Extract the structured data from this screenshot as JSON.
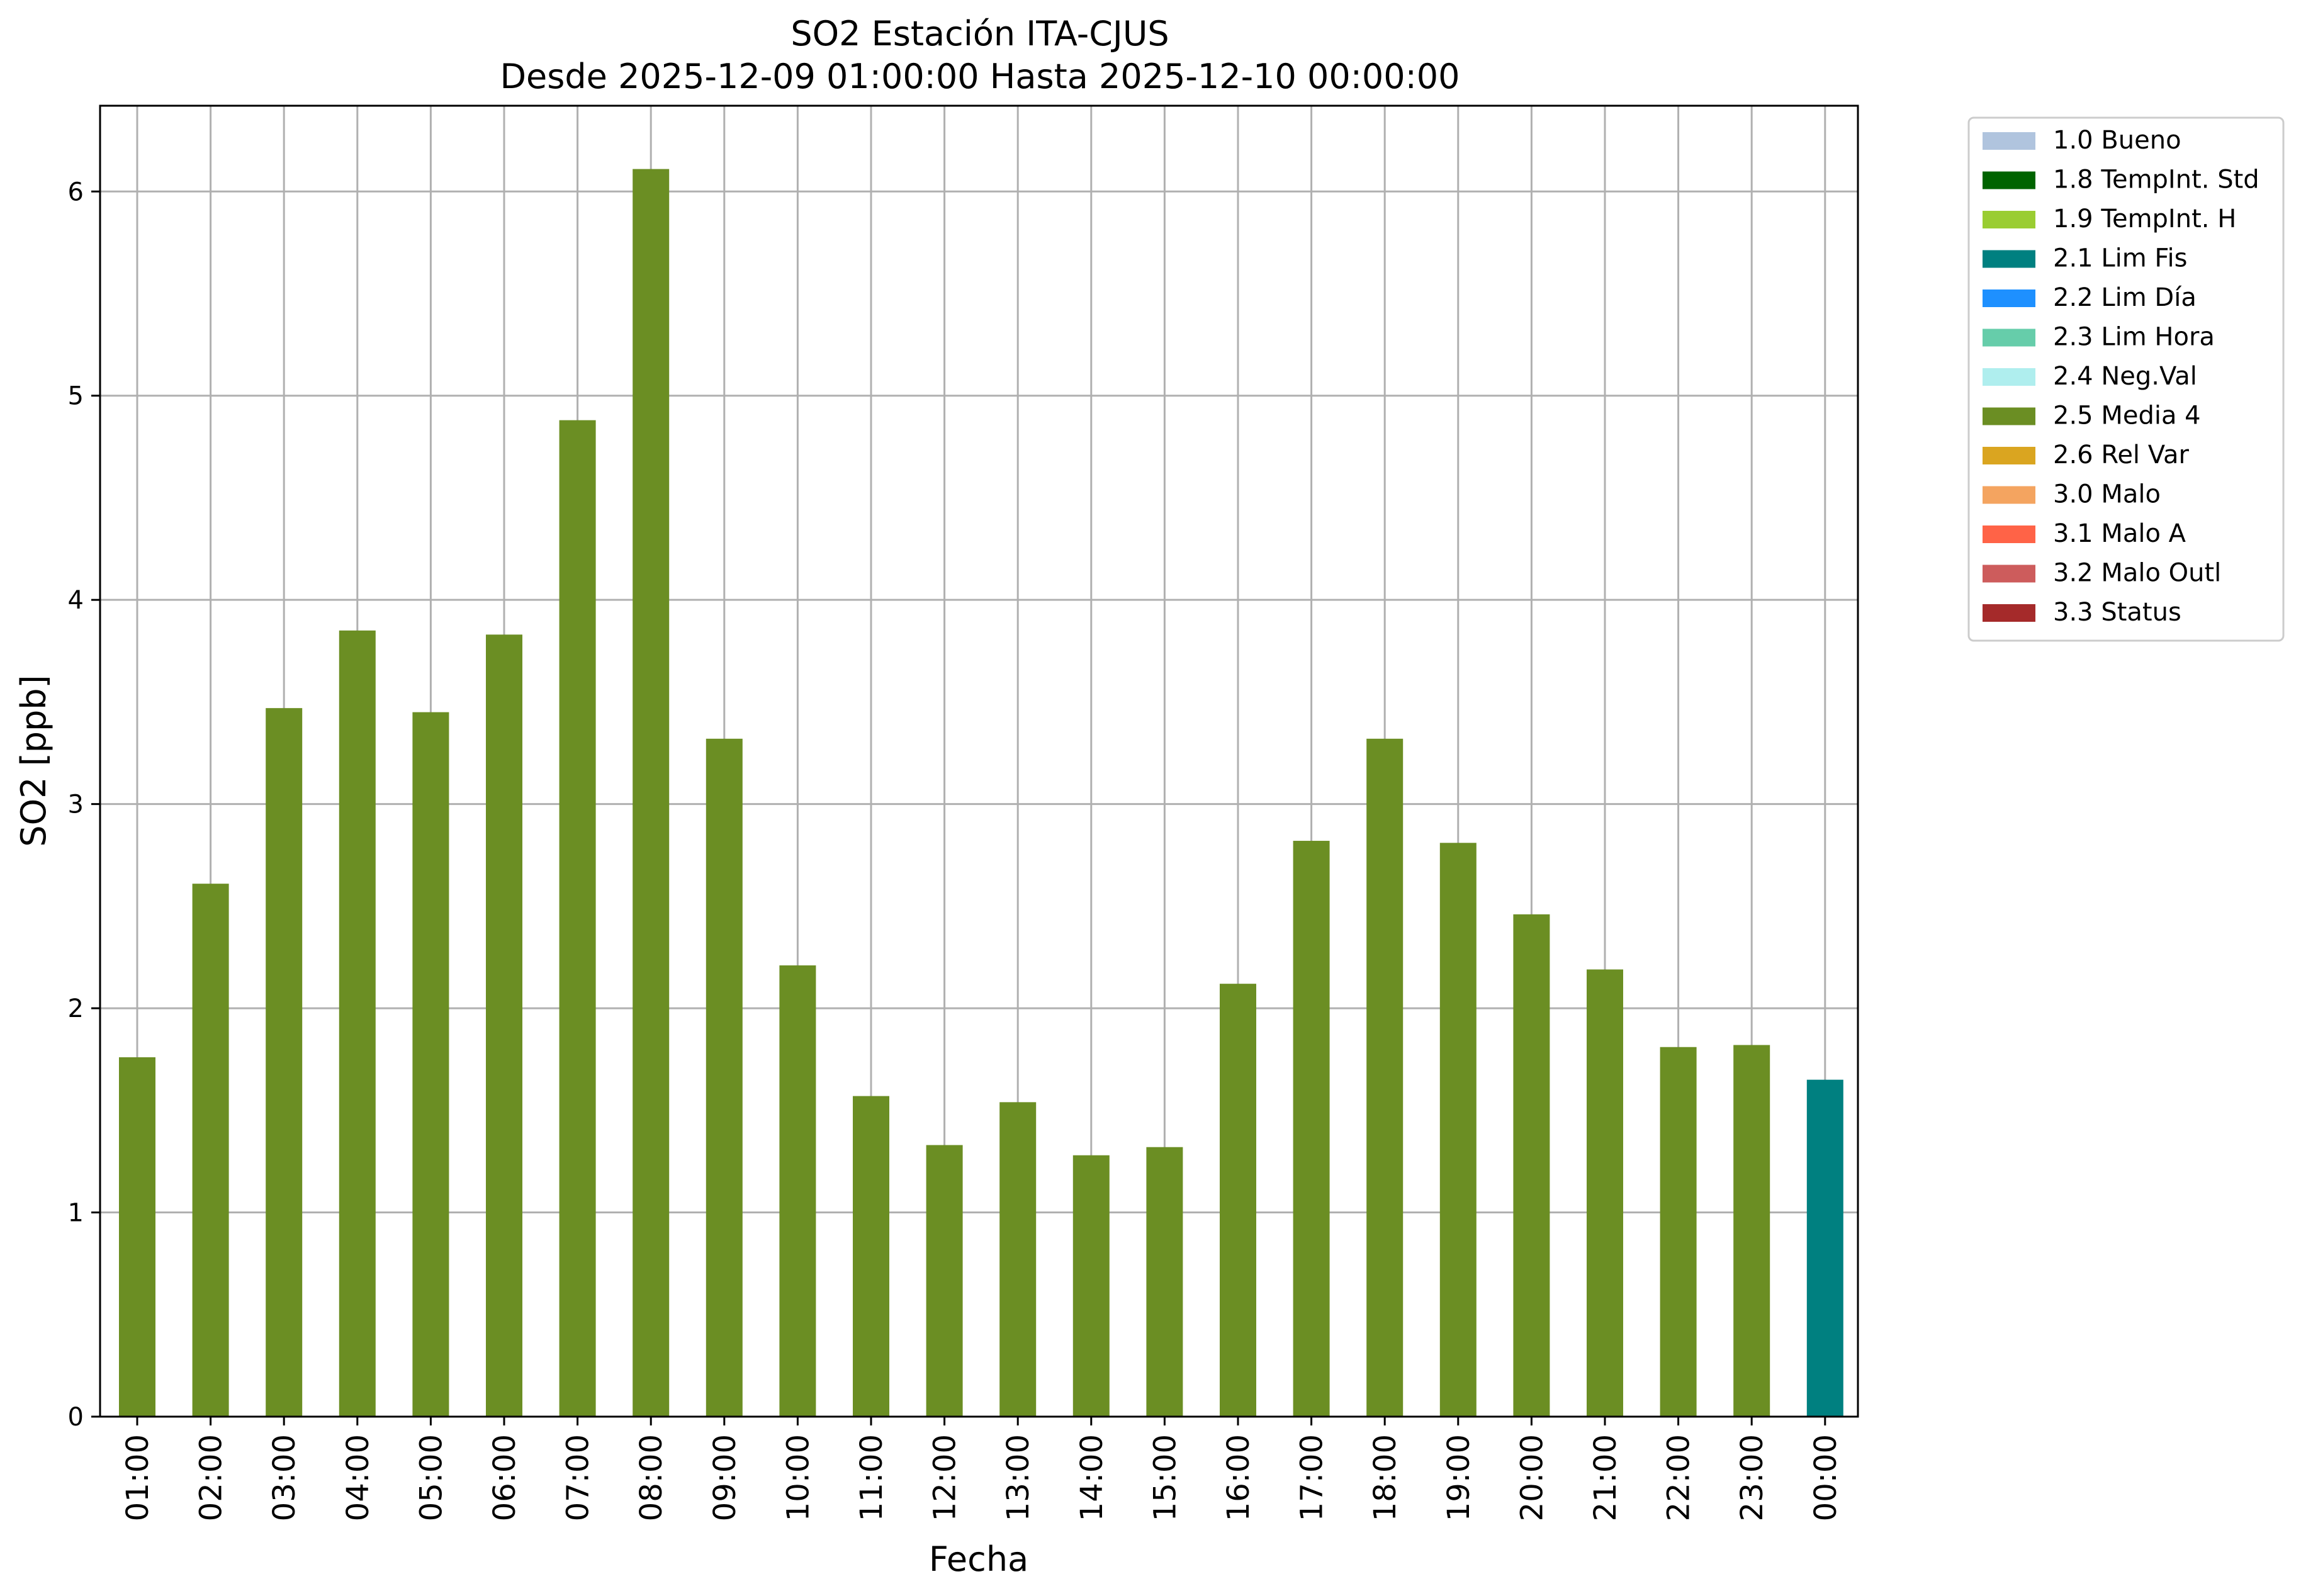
{
  "chart_data": {
    "type": "bar",
    "title": "SO2 Estación ITA-CJUS",
    "subtitle": "Desde 2025-12-09 01:00:00 Hasta 2025-12-10 00:00:00",
    "xlabel": "Fecha",
    "ylabel": "SO2 [ppb]",
    "ylim": [
      0,
      6.42
    ],
    "yticks": [
      "0",
      "1",
      "2",
      "3",
      "4",
      "5",
      "6"
    ],
    "grid": true,
    "legend_position": "outside-top-right",
    "categories": [
      "01:00",
      "02:00",
      "03:00",
      "04:00",
      "05:00",
      "06:00",
      "07:00",
      "08:00",
      "09:00",
      "10:00",
      "11:00",
      "12:00",
      "13:00",
      "14:00",
      "15:00",
      "16:00",
      "17:00",
      "18:00",
      "19:00",
      "20:00",
      "21:00",
      "22:00",
      "23:00",
      "00:00"
    ],
    "values": [
      1.76,
      2.61,
      3.47,
      3.85,
      3.45,
      3.83,
      4.88,
      6.11,
      3.32,
      2.21,
      1.57,
      1.33,
      1.54,
      1.28,
      1.32,
      2.12,
      2.82,
      3.32,
      2.81,
      2.46,
      2.19,
      1.81,
      1.82,
      1.65
    ],
    "flags": [
      "2.5 Media 4",
      "2.5 Media 4",
      "2.5 Media 4",
      "2.5 Media 4",
      "2.5 Media 4",
      "2.5 Media 4",
      "2.5 Media 4",
      "2.5 Media 4",
      "2.5 Media 4",
      "2.5 Media 4",
      "2.5 Media 4",
      "2.5 Media 4",
      "2.5 Media 4",
      "2.5 Media 4",
      "2.5 Media 4",
      "2.5 Media 4",
      "2.5 Media 4",
      "2.5 Media 4",
      "2.5 Media 4",
      "2.5 Media 4",
      "2.5 Media 4",
      "2.5 Media 4",
      "2.5 Media 4",
      "2.1 Lim Fis"
    ],
    "legend": [
      {
        "label": "1.0 Bueno",
        "color": "#b0c4de"
      },
      {
        "label": "1.8 TempInt. Std",
        "color": "#006400"
      },
      {
        "label": "1.9 TempInt. H",
        "color": "#9acd32"
      },
      {
        "label": "2.1 Lim Fis",
        "color": "#008080"
      },
      {
        "label": "2.2 Lim Día",
        "color": "#1e90ff"
      },
      {
        "label": "2.3 Lim Hora",
        "color": "#66cdaa"
      },
      {
        "label": "2.4 Neg.Val",
        "color": "#afeeee"
      },
      {
        "label": "2.5 Media 4",
        "color": "#6b8e23"
      },
      {
        "label": "2.6 Rel Var",
        "color": "#daa520"
      },
      {
        "label": "3.0 Malo",
        "color": "#f4a460"
      },
      {
        "label": "3.1 Malo A",
        "color": "#ff6347"
      },
      {
        "label": "3.2 Malo Outl",
        "color": "#cd5c5c"
      },
      {
        "label": "3.3 Status",
        "color": "#a52a2a"
      }
    ]
  }
}
